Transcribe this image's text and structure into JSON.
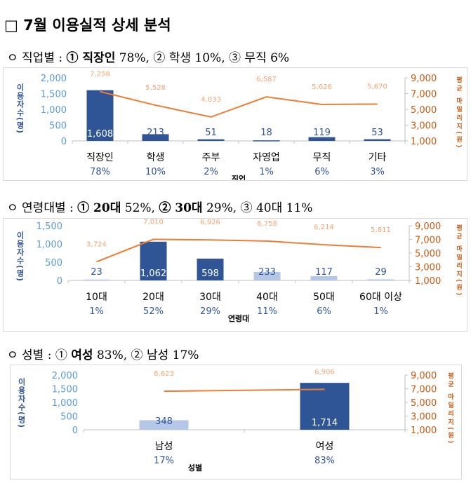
{
  "title": "□ 7월 이용실적 상세 분석",
  "sections": [
    {
      "heading_prefix": "ㅇ 직업별 : ",
      "heading_bold": "① 직장인",
      "heading_rest": " 78%, ② 학생 10%, ③ 무직 6%"
    },
    {
      "heading_prefix": "ㅇ 연령대별 : ",
      "heading_bold": "① 20대",
      "heading_rest": " 52%, ",
      "heading_bold2": "② 30대",
      "heading_rest2": " 29%, ③ 40대 11%"
    },
    {
      "heading_prefix": "ㅇ 성별 : ① ",
      "heading_bold": "여성",
      "heading_rest": " 83%, ② 남성 17%"
    }
  ],
  "colors": {
    "bar_dark": "#2f5597",
    "bar_light": "#b4c7e7",
    "line": "#ed7d31",
    "left_axis": "#5b9bd5",
    "right_axis": "#c55a11",
    "percent": "#2f5597"
  },
  "chart_data": [
    {
      "type": "bar+line",
      "xlabel": "직업",
      "ylabel_left": "이용자수(명)",
      "ylabel_right": "평균 마일리지(원)",
      "categories": [
        "직장인",
        "학생",
        "주부",
        "자영업",
        "무직",
        "기타"
      ],
      "percents": [
        "78%",
        "10%",
        "2%",
        "1%",
        "6%",
        "3%"
      ],
      "bar_values": [
        1608,
        213,
        51,
        18,
        119,
        53
      ],
      "bar_value_labels": [
        "1,608",
        "213",
        "51",
        "18",
        "119",
        "53"
      ],
      "bar_shade": [
        "dark",
        "dark",
        "dark",
        "dark",
        "dark",
        "dark"
      ],
      "line_values": [
        7258,
        5528,
        4033,
        6587,
        5626,
        5670
      ],
      "line_value_labels": [
        "7,258",
        "5,528",
        "4,033",
        "6,587",
        "5,626",
        "5,670"
      ],
      "ylim_left": [
        0,
        2000
      ],
      "yticks_left": [
        "0",
        "500",
        "1,000",
        "1,500",
        "2,000"
      ],
      "ylim_right": [
        1000,
        9000
      ],
      "yticks_right": [
        "1,000",
        "3,000",
        "5,000",
        "7,000",
        "9,000"
      ]
    },
    {
      "type": "bar+line",
      "xlabel": "연령대",
      "ylabel_left": "이용자수(명)",
      "ylabel_right": "평균 마일리지(원)",
      "categories": [
        "10대",
        "20대",
        "30대",
        "40대",
        "50대",
        "60대 이상"
      ],
      "percents": [
        "1%",
        "52%",
        "29%",
        "11%",
        "6%",
        "1%"
      ],
      "bar_values": [
        23,
        1062,
        598,
        233,
        117,
        29
      ],
      "bar_value_labels": [
        "23",
        "1,062",
        "598",
        "233",
        "117",
        "29"
      ],
      "bar_shade": [
        "light",
        "dark",
        "dark",
        "light",
        "light",
        "light"
      ],
      "line_values": [
        3724,
        7010,
        6926,
        6758,
        6214,
        5811
      ],
      "line_value_labels": [
        "3,724",
        "7,010",
        "6,926",
        "6,758",
        "6,214",
        "5,811"
      ],
      "ylim_left": [
        0,
        1500
      ],
      "yticks_left": [
        "0",
        "500",
        "1,000",
        "1,500"
      ],
      "ylim_right": [
        1000,
        9000
      ],
      "yticks_right": [
        "1,000",
        "3,000",
        "5,000",
        "7,000",
        "9,000"
      ]
    },
    {
      "type": "bar+line",
      "xlabel": "성별",
      "ylabel_left": "이용자수(명)",
      "ylabel_right": "평균 마일리지(원)",
      "categories": [
        "남성",
        "여성"
      ],
      "percents": [
        "17%",
        "83%"
      ],
      "bar_values": [
        348,
        1714
      ],
      "bar_value_labels": [
        "348",
        "1,714"
      ],
      "bar_shade": [
        "light",
        "dark"
      ],
      "line_values": [
        6623,
        6906
      ],
      "line_value_labels": [
        "6,623",
        "6,906"
      ],
      "ylim_left": [
        0,
        2000
      ],
      "yticks_left": [
        "0",
        "500",
        "1,000",
        "1,500",
        "2,000"
      ],
      "ylim_right": [
        1000,
        9000
      ],
      "yticks_right": [
        "1,000",
        "3,000",
        "5,000",
        "7,000",
        "9,000"
      ]
    }
  ]
}
